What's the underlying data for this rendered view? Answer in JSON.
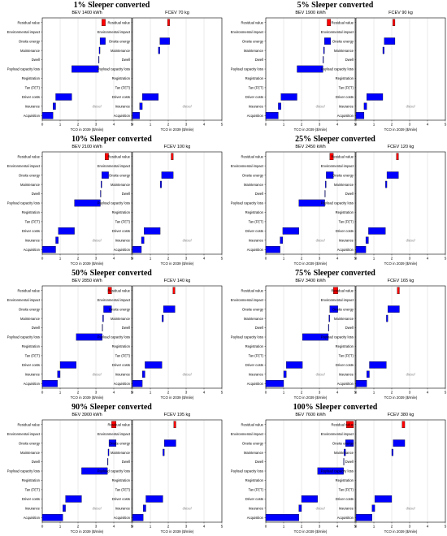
{
  "figure": {
    "panel_xlabel": "TCO in 2039 ($/mile)",
    "diesel_label": "diesel",
    "categories": [
      "Residual value",
      "Environmental impact",
      "Onsite energy",
      "Maintenance",
      "Dwell",
      "Payload capacity loss",
      "Registration",
      "Tax (FET)",
      "Driver costs",
      "Insurance",
      "Acquisition"
    ],
    "x_ticks": [
      0,
      1,
      2,
      3,
      4,
      5
    ],
    "xlim": [
      0,
      5
    ],
    "diesel_x": 2.8,
    "colors": {
      "increase": "#0000ff",
      "residual": "#ff0000",
      "grid": "#cccccc",
      "edge": "#000000"
    }
  },
  "chart_data": [
    {
      "type": "bar",
      "group_title": "1% Sleeper converted",
      "panels": [
        {
          "name": "BEV",
          "title": "BEV 1400 kWh",
          "values": [
            -0.2,
            0,
            0.3,
            0.05,
            0.03,
            1.5,
            0,
            0,
            0.9,
            0.15,
            0.6
          ]
        },
        {
          "name": "FCEV",
          "title": "FCEV 70 kg",
          "values": [
            -0.12,
            0,
            0.55,
            0.08,
            0,
            0,
            0,
            0,
            0.9,
            0.15,
            0.4
          ]
        }
      ]
    },
    {
      "type": "bar",
      "group_title": "5% Sleeper converted",
      "panels": [
        {
          "name": "BEV",
          "title": "BEV 1900 kWh",
          "values": [
            -0.2,
            0,
            0.35,
            0.05,
            0.03,
            1.45,
            0,
            0,
            0.9,
            0.15,
            0.7
          ]
        },
        {
          "name": "FCEV",
          "title": "FCEV 90 kg",
          "values": [
            -0.12,
            0,
            0.6,
            0.08,
            0,
            0,
            0,
            0,
            0.9,
            0.15,
            0.45
          ]
        }
      ]
    },
    {
      "type": "bar",
      "group_title": "10% Sleeper converted",
      "panels": [
        {
          "name": "BEV",
          "title": "BEV 2100 kWh",
          "values": [
            -0.2,
            0,
            0.38,
            0.05,
            0.03,
            1.45,
            0,
            0,
            0.9,
            0.15,
            0.75
          ]
        },
        {
          "name": "FCEV",
          "title": "FCEV 100 kg",
          "values": [
            -0.12,
            0,
            0.65,
            0.08,
            0,
            0,
            0,
            0,
            0.9,
            0.15,
            0.5
          ]
        }
      ]
    },
    {
      "type": "bar",
      "group_title": "25% Sleeper converted",
      "panels": [
        {
          "name": "BEV",
          "title": "BEV 2450 kWh",
          "values": [
            -0.2,
            0,
            0.4,
            0.05,
            0.03,
            1.45,
            0,
            0,
            0.9,
            0.15,
            0.8
          ]
        },
        {
          "name": "FCEV",
          "title": "FCEV 120 kg",
          "values": [
            -0.12,
            0,
            0.65,
            0.08,
            0,
            0,
            0,
            0,
            0.95,
            0.15,
            0.55
          ]
        }
      ]
    },
    {
      "type": "bar",
      "group_title": "50% Sleeper converted",
      "panels": [
        {
          "name": "BEV",
          "title": "BEV 2850 kWh",
          "values": [
            -0.2,
            0,
            0.45,
            0.05,
            0.03,
            1.45,
            0,
            0,
            0.9,
            0.15,
            0.85
          ]
        },
        {
          "name": "FCEV",
          "title": "FCEV 140 kg",
          "values": [
            -0.12,
            0,
            0.65,
            0.08,
            0,
            0,
            0,
            0,
            0.95,
            0.15,
            0.55
          ]
        }
      ]
    },
    {
      "type": "bar",
      "group_title": "75% Sleeper converted",
      "panels": [
        {
          "name": "BEV",
          "title": "BEV 3400 kWh",
          "values": [
            -0.25,
            0,
            0.45,
            0.05,
            0.03,
            1.45,
            0,
            0,
            0.9,
            0.15,
            1.0
          ]
        },
        {
          "name": "FCEV",
          "title": "FCEV 165 kg",
          "values": [
            -0.12,
            0,
            0.65,
            0.08,
            0,
            0,
            0,
            0,
            0.95,
            0.15,
            0.6
          ]
        }
      ]
    },
    {
      "type": "bar",
      "group_title": "90% Sleeper converted",
      "panels": [
        {
          "name": "BEV",
          "title": "BEV 3900 kWh",
          "values": [
            -0.25,
            0,
            0.4,
            0.05,
            0.03,
            1.45,
            0,
            0,
            0.9,
            0.15,
            1.15
          ]
        },
        {
          "name": "FCEV",
          "title": "FCEV 195 kg",
          "values": [
            -0.12,
            0,
            0.65,
            0.08,
            0,
            0,
            0,
            0,
            0.95,
            0.15,
            0.6
          ]
        }
      ]
    },
    {
      "type": "bar",
      "group_title": "100% Sleeper converted",
      "panels": [
        {
          "name": "BEV",
          "title": "BEV 7600 kWh",
          "values": [
            -0.4,
            0,
            0.45,
            0.08,
            0.03,
            1.45,
            0,
            0,
            0.9,
            0.15,
            1.85
          ]
        },
        {
          "name": "FCEV",
          "title": "FCEV 380 kg",
          "values": [
            -0.15,
            0,
            0.65,
            0.08,
            0,
            0,
            0,
            0,
            0.95,
            0.15,
            0.9
          ]
        }
      ]
    }
  ]
}
